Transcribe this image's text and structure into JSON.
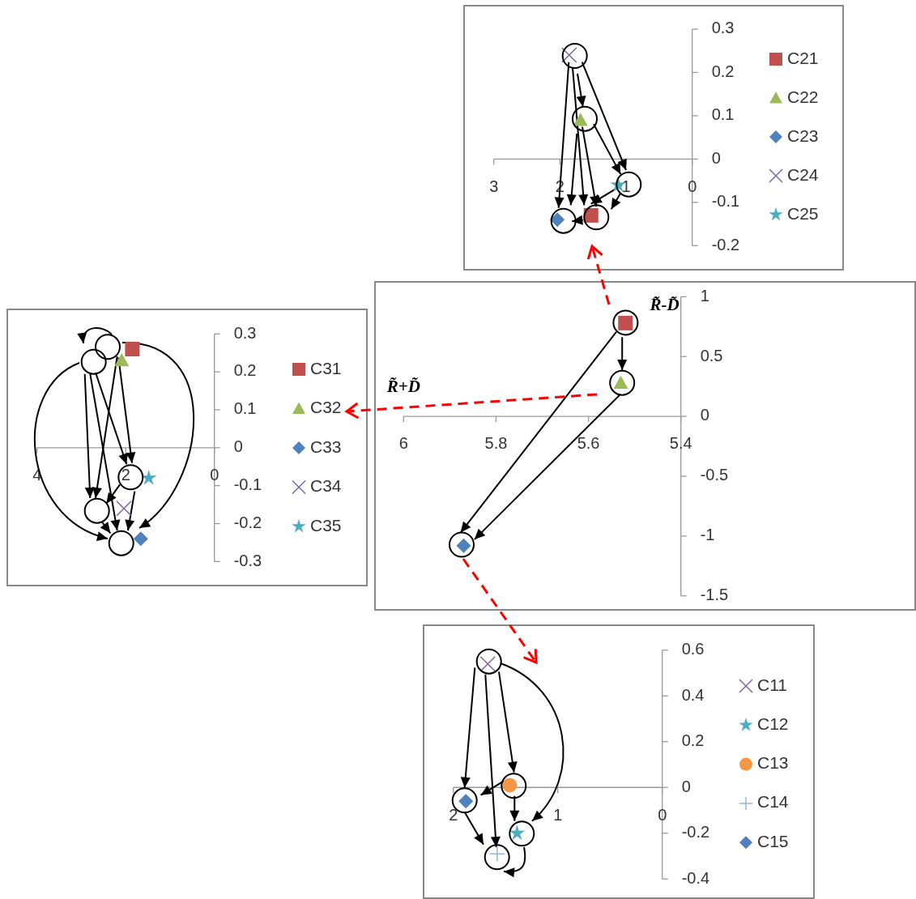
{
  "chart_data": [
    {
      "type": "scatter",
      "xlim": [
        3,
        0
      ],
      "ylim": [
        -0.2,
        0.3
      ],
      "xticks": [
        3,
        2,
        1,
        0
      ],
      "yticks": [
        -0.2,
        -0.1,
        0,
        0.1,
        0.2,
        0.3
      ],
      "legend": "right",
      "series": [
        {
          "name": "C21",
          "color": "#c0504d",
          "marker": "square",
          "x": [
            1.53
          ],
          "values": [
            -0.13
          ]
        },
        {
          "name": "C22",
          "color": "#9bbb59",
          "marker": "triangle",
          "x": [
            1.69
          ],
          "values": [
            0.09
          ]
        },
        {
          "name": "C23",
          "color": "#4f81bd",
          "marker": "diamond",
          "x": [
            2.04
          ],
          "values": [
            -0.14
          ]
        },
        {
          "name": "C24",
          "color": "#8064a2",
          "marker": "cross",
          "x": [
            1.86
          ],
          "values": [
            0.24
          ]
        },
        {
          "name": "C25",
          "color": "#4bacc6",
          "marker": "star",
          "x": [
            1.12
          ],
          "values": [
            -0.06
          ]
        }
      ]
    },
    {
      "type": "scatter",
      "xlim": [
        4,
        0
      ],
      "ylim": [
        -0.3,
        0.3
      ],
      "xticks": [
        4,
        2,
        0
      ],
      "yticks": [
        -0.3,
        -0.2,
        -0.1,
        0,
        0.1,
        0.2,
        0.3
      ],
      "legend": "right",
      "series": [
        {
          "name": "C31",
          "color": "#c0504d",
          "marker": "square",
          "x": [
            1.85
          ],
          "values": [
            0.26
          ]
        },
        {
          "name": "C32",
          "color": "#9bbb59",
          "marker": "triangle",
          "x": [
            2.09
          ],
          "values": [
            0.23
          ]
        },
        {
          "name": "C33",
          "color": "#4f81bd",
          "marker": "diamond",
          "x": [
            1.66
          ],
          "values": [
            -0.24
          ]
        },
        {
          "name": "C34",
          "color": "#8064a2",
          "marker": "cross",
          "x": [
            2.04
          ],
          "values": [
            -0.16
          ]
        },
        {
          "name": "C35",
          "color": "#4bacc6",
          "marker": "star",
          "x": [
            1.48
          ],
          "values": [
            -0.08
          ]
        }
      ]
    },
    {
      "type": "scatter",
      "xlabel": "R̃+D̃",
      "ylabel": "R̃-D̃",
      "xlim": [
        6,
        5.4
      ],
      "ylim": [
        -1.5,
        1
      ],
      "xticks": [
        6,
        5.8,
        5.6,
        5.4
      ],
      "yticks": [
        -1.5,
        -1,
        -0.5,
        0,
        0.5,
        1
      ],
      "series": [
        {
          "color": "#c0504d",
          "marker": "square",
          "x": [
            5.52
          ],
          "values": [
            0.78
          ]
        },
        {
          "color": "#9bbb59",
          "marker": "triangle",
          "x": [
            5.53
          ],
          "values": [
            0.28
          ]
        },
        {
          "color": "#4f81bd",
          "marker": "diamond",
          "x": [
            5.87
          ],
          "values": [
            -1.08
          ]
        }
      ]
    },
    {
      "type": "scatter",
      "xlim": [
        2,
        0
      ],
      "ylim": [
        -0.4,
        0.6
      ],
      "xticks": [
        2,
        1,
        0
      ],
      "yticks": [
        -0.4,
        -0.2,
        0,
        0.2,
        0.4,
        0.6
      ],
      "legend": "right",
      "series": [
        {
          "name": "C11",
          "color": "#8064a2",
          "marker": "cross",
          "x": [
            1.67
          ],
          "values": [
            0.54
          ]
        },
        {
          "name": "C12",
          "color": "#4bacc6",
          "marker": "star",
          "x": [
            1.39
          ],
          "values": [
            -0.2
          ]
        },
        {
          "name": "C13",
          "color": "#f79646",
          "marker": "circle",
          "x": [
            1.46
          ],
          "values": [
            0.01
          ]
        },
        {
          "name": "C14",
          "color": "#95b3d7",
          "marker": "plus",
          "x": [
            1.58
          ],
          "values": [
            -0.29
          ]
        },
        {
          "name": "C15",
          "color": "#4f81bd",
          "marker": "diamond",
          "x": [
            1.88
          ],
          "values": [
            -0.06
          ]
        }
      ]
    }
  ]
}
